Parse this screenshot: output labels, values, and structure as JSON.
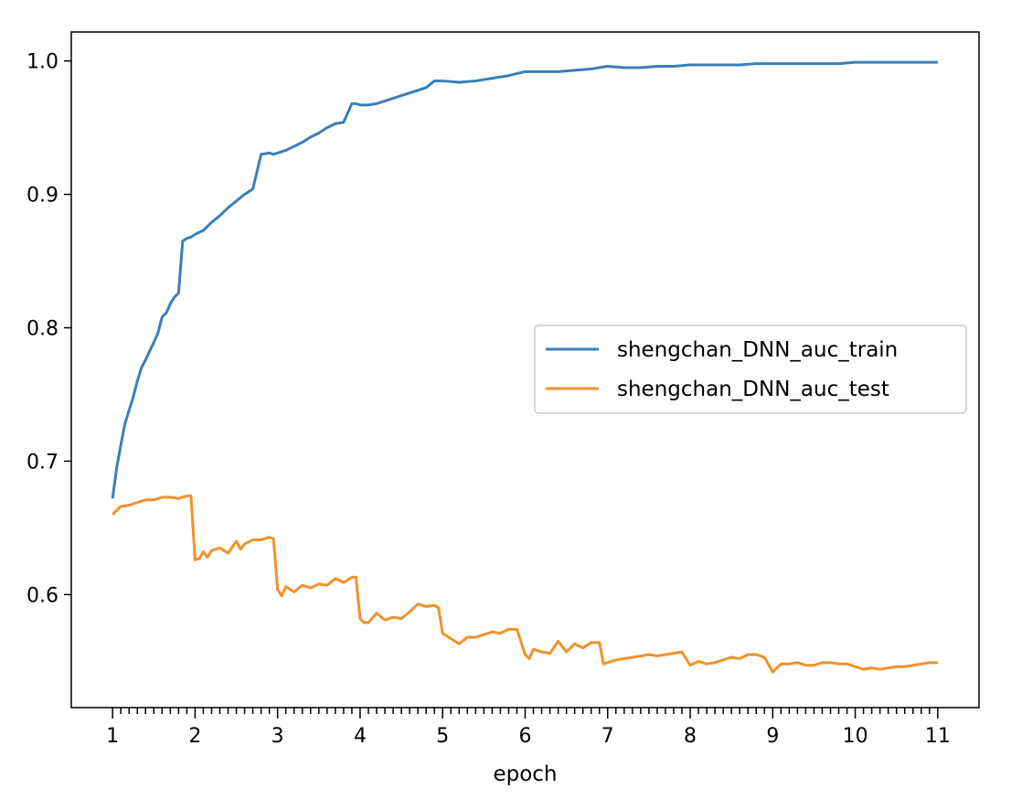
{
  "colors": {
    "train": "#3a7fb8",
    "test": "#f0922b",
    "axis": "#000000",
    "legend_border": "#cccccc"
  },
  "chart_data": {
    "type": "line",
    "title": "",
    "xlabel": "epoch",
    "ylabel": "",
    "xlim": [
      0.5,
      11.5
    ],
    "ylim": [
      0.5153,
      1.0217
    ],
    "grid": false,
    "legend_position": "center-right",
    "x_ticks": [
      1,
      2,
      3,
      4,
      5,
      6,
      7,
      8,
      9,
      10,
      11
    ],
    "x_tick_labels": [
      "1",
      "2",
      "3",
      "4",
      "5",
      "6",
      "7",
      "8",
      "9",
      "10",
      "11"
    ],
    "y_ticks": [
      0.6,
      0.7,
      0.8,
      0.9,
      1.0
    ],
    "y_tick_labels": [
      "0.6",
      "0.7",
      "0.8",
      "0.9",
      "1.0"
    ],
    "series": [
      {
        "name": "shengchan_DNN_auc_train",
        "color": "#3a7fb8",
        "x": [
          1.0,
          1.05,
          1.1,
          1.15,
          1.2,
          1.25,
          1.3,
          1.35,
          1.4,
          1.5,
          1.55,
          1.6,
          1.65,
          1.7,
          1.75,
          1.8,
          1.85,
          1.9,
          1.95,
          2.0,
          2.1,
          2.2,
          2.3,
          2.4,
          2.5,
          2.6,
          2.7,
          2.8,
          2.9,
          2.95,
          3.0,
          3.1,
          3.2,
          3.3,
          3.4,
          3.5,
          3.6,
          3.7,
          3.8,
          3.9,
          3.95,
          4.0,
          4.1,
          4.2,
          4.3,
          4.4,
          4.5,
          4.6,
          4.7,
          4.8,
          4.9,
          5.0,
          5.2,
          5.4,
          5.6,
          5.8,
          6.0,
          6.2,
          6.4,
          6.6,
          6.8,
          7.0,
          7.2,
          7.4,
          7.6,
          7.8,
          8.0,
          8.2,
          8.4,
          8.6,
          8.8,
          9.0,
          9.2,
          9.4,
          9.6,
          9.8,
          10.0,
          10.2,
          10.4,
          10.6,
          10.8,
          11.0
        ],
        "values": [
          0.672,
          0.695,
          0.712,
          0.728,
          0.738,
          0.748,
          0.76,
          0.77,
          0.776,
          0.789,
          0.796,
          0.808,
          0.811,
          0.818,
          0.823,
          0.826,
          0.865,
          0.867,
          0.868,
          0.87,
          0.873,
          0.879,
          0.884,
          0.89,
          0.895,
          0.9,
          0.904,
          0.93,
          0.931,
          0.93,
          0.931,
          0.933,
          0.936,
          0.939,
          0.943,
          0.946,
          0.95,
          0.953,
          0.954,
          0.968,
          0.968,
          0.967,
          0.967,
          0.968,
          0.97,
          0.972,
          0.974,
          0.976,
          0.978,
          0.98,
          0.985,
          0.985,
          0.984,
          0.985,
          0.987,
          0.989,
          0.992,
          0.992,
          0.992,
          0.993,
          0.994,
          0.996,
          0.995,
          0.995,
          0.996,
          0.996,
          0.997,
          0.997,
          0.997,
          0.997,
          0.998,
          0.998,
          0.998,
          0.998,
          0.998,
          0.998,
          0.999,
          0.999,
          0.999,
          0.999,
          0.999,
          0.999
        ]
      },
      {
        "name": "shengchan_DNN_auc_test",
        "color": "#f0922b",
        "x": [
          1.0,
          1.1,
          1.2,
          1.3,
          1.4,
          1.5,
          1.6,
          1.7,
          1.8,
          1.9,
          1.95,
          2.0,
          2.05,
          2.1,
          2.15,
          2.2,
          2.3,
          2.4,
          2.5,
          2.55,
          2.6,
          2.7,
          2.8,
          2.9,
          2.95,
          3.0,
          3.05,
          3.1,
          3.2,
          3.3,
          3.4,
          3.5,
          3.6,
          3.7,
          3.8,
          3.9,
          3.95,
          4.0,
          4.05,
          4.1,
          4.2,
          4.3,
          4.4,
          4.5,
          4.6,
          4.7,
          4.8,
          4.9,
          4.95,
          5.0,
          5.1,
          5.2,
          5.3,
          5.4,
          5.5,
          5.6,
          5.7,
          5.8,
          5.9,
          6.0,
          6.05,
          6.1,
          6.2,
          6.3,
          6.4,
          6.5,
          6.6,
          6.7,
          6.8,
          6.9,
          6.95,
          7.0,
          7.1,
          7.2,
          7.3,
          7.4,
          7.5,
          7.6,
          7.7,
          7.8,
          7.9,
          8.0,
          8.1,
          8.2,
          8.3,
          8.4,
          8.5,
          8.6,
          8.7,
          8.8,
          8.9,
          9.0,
          9.1,
          9.2,
          9.3,
          9.4,
          9.5,
          9.6,
          9.7,
          9.8,
          9.9,
          10.0,
          10.1,
          10.2,
          10.3,
          10.4,
          10.5,
          10.6,
          10.7,
          10.8,
          10.9,
          11.0
        ],
        "values": [
          0.66,
          0.666,
          0.667,
          0.669,
          0.671,
          0.671,
          0.673,
          0.673,
          0.672,
          0.674,
          0.674,
          0.626,
          0.627,
          0.632,
          0.628,
          0.633,
          0.635,
          0.631,
          0.64,
          0.634,
          0.638,
          0.641,
          0.641,
          0.643,
          0.642,
          0.604,
          0.599,
          0.606,
          0.602,
          0.607,
          0.605,
          0.608,
          0.607,
          0.612,
          0.609,
          0.613,
          0.613,
          0.582,
          0.579,
          0.579,
          0.586,
          0.581,
          0.583,
          0.582,
          0.587,
          0.593,
          0.591,
          0.592,
          0.59,
          0.571,
          0.567,
          0.563,
          0.568,
          0.568,
          0.57,
          0.572,
          0.571,
          0.574,
          0.574,
          0.555,
          0.552,
          0.559,
          0.557,
          0.556,
          0.565,
          0.557,
          0.563,
          0.56,
          0.564,
          0.564,
          0.548,
          0.549,
          0.551,
          0.552,
          0.553,
          0.554,
          0.555,
          0.554,
          0.555,
          0.556,
          0.557,
          0.547,
          0.55,
          0.548,
          0.549,
          0.551,
          0.553,
          0.552,
          0.555,
          0.555,
          0.553,
          0.542,
          0.548,
          0.548,
          0.549,
          0.547,
          0.547,
          0.549,
          0.549,
          0.548,
          0.548,
          0.546,
          0.544,
          0.545,
          0.544,
          0.545,
          0.546,
          0.546,
          0.547,
          0.548,
          0.549,
          0.549
        ]
      }
    ]
  }
}
